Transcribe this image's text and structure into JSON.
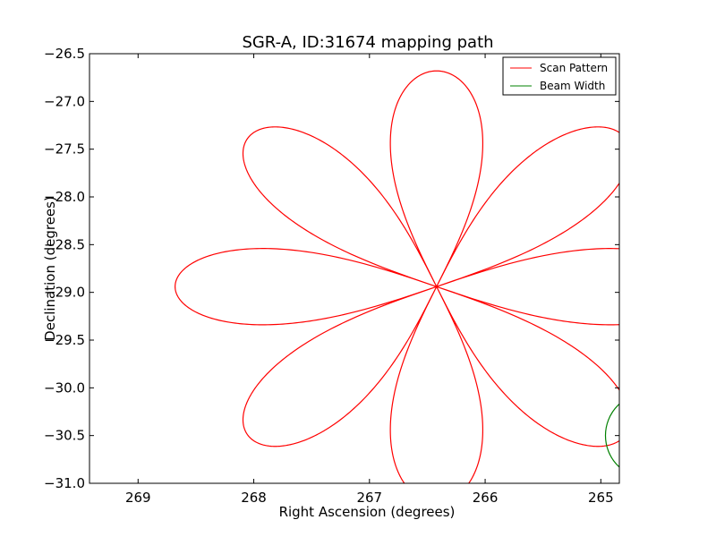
{
  "chart_data": {
    "type": "line",
    "title": "SGR-A, ID:31674 mapping path",
    "xlabel": "Right Ascension (degrees)",
    "ylabel": "Declination (degrees)",
    "xlim": [
      269.42,
      264.84
    ],
    "ylim": [
      -31.0,
      -26.5
    ],
    "x_inverted": true,
    "xticks": [
      269,
      268,
      267,
      266,
      265
    ],
    "xtick_labels": [
      "269",
      "268",
      "267",
      "266",
      "265"
    ],
    "yticks": [
      -26.5,
      -27.0,
      -27.5,
      -28.0,
      -28.5,
      -29.0,
      -29.5,
      -30.0,
      -30.5,
      -31.0
    ],
    "ytick_labels": [
      "−26.5",
      "−27.0",
      "−27.5",
      "−28.0",
      "−28.5",
      "−29.0",
      "−29.5",
      "−30.0",
      "−30.5",
      "−31.0"
    ],
    "grid": false,
    "legend_position": "upper right",
    "center": {
      "ra": 266.42,
      "dec": -28.94
    },
    "series": [
      {
        "name": "Scan Pattern",
        "color": "#ff0000",
        "shape": "rose (8 petals, r = R·|cos 4θ|)",
        "petal_length_deg": 2.26
      },
      {
        "name": "Beam Width",
        "color": "#008000",
        "shape": "circle",
        "center": {
          "ra": 264.59,
          "dec": -30.5
        },
        "radius_deg": 0.37
      }
    ]
  }
}
